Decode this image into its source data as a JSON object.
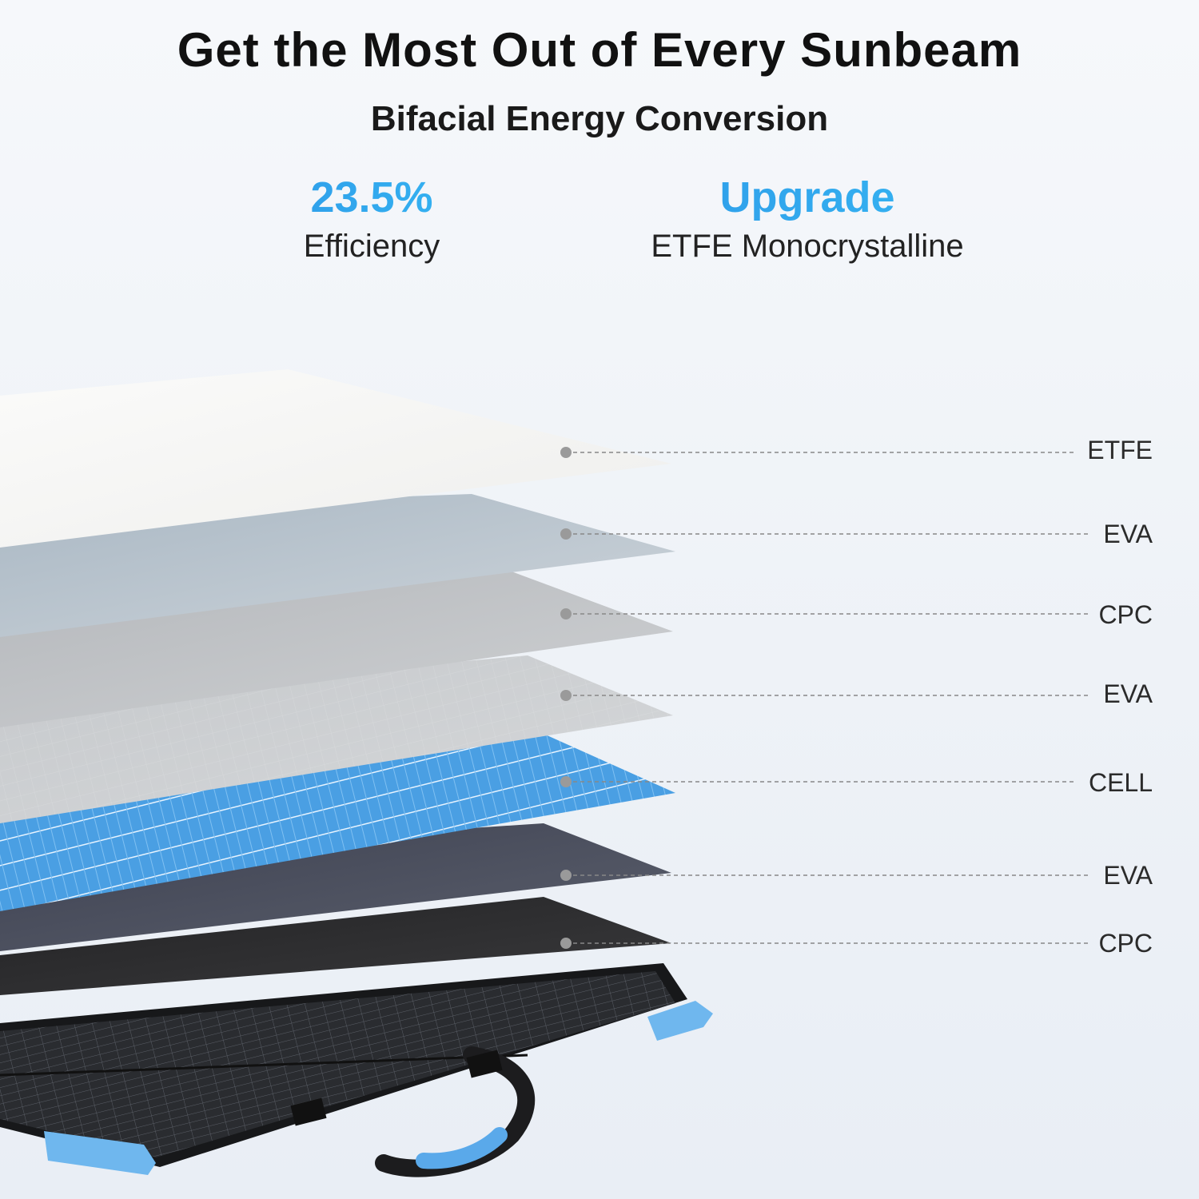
{
  "header": {
    "title": "Get the Most Out of Every Sunbeam",
    "subtitle": "Bifacial Energy Conversion"
  },
  "stats": [
    {
      "value": "23.5%",
      "caption": "Efficiency"
    },
    {
      "value": "Upgrade",
      "caption": "ETFE Monocrystalline"
    }
  ],
  "layers": [
    {
      "label": "ETFE"
    },
    {
      "label": "EVA"
    },
    {
      "label": "CPC"
    },
    {
      "label": "EVA"
    },
    {
      "label": "CELL"
    },
    {
      "label": "EVA"
    },
    {
      "label": "CPC"
    }
  ],
  "colors": {
    "accent": "#2e9ae8",
    "corner_guard": "#6fb7ee",
    "etfe": "#f7f7f5",
    "eva_light": "#bcc7d0",
    "cpc_light": "#c2c4c7",
    "cell": "#4a9fe3",
    "eva_dark": "#4c5060",
    "cpc_dark": "#2a2a2c",
    "panel_base": "#1f2124"
  },
  "icons": [
    "handle-icon",
    "corner-guard-icon"
  ]
}
